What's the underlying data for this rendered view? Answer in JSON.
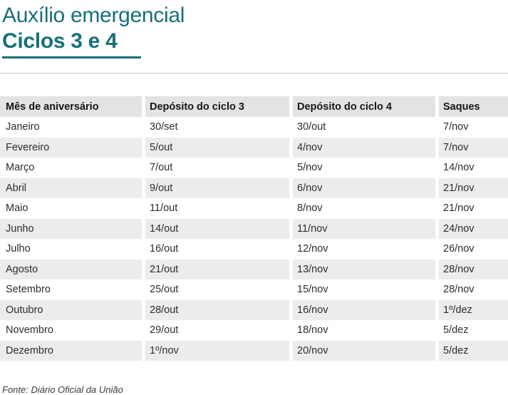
{
  "title": "Auxílio emergencial",
  "subtitle": "Ciclos 3 e 4",
  "colors": {
    "accent": "#16707a",
    "header_bg": "#e3e3e3",
    "row_alt_bg": "#ececec",
    "divider": "#e4e4e4",
    "text": "#2d2d2d"
  },
  "chart_data": {
    "type": "table",
    "title": "Auxílio emergencial — Ciclos 3 e 4",
    "columns": [
      "Mês de aniversário",
      "Depósito do ciclo 3",
      "Depósito do ciclo 4",
      "Saques"
    ],
    "rows": [
      [
        "Janeiro",
        "30/set",
        "30/out",
        "7/nov"
      ],
      [
        "Fevereiro",
        "5/out",
        "4/nov",
        "7/nov"
      ],
      [
        "Março",
        "7/out",
        "5/nov",
        "14/nov"
      ],
      [
        "Abril",
        "9/out",
        "6/nov",
        "21/nov"
      ],
      [
        "Maio",
        "11/out",
        "8/nov",
        "21/nov"
      ],
      [
        "Junho",
        "14/out",
        "11/nov",
        "24/nov"
      ],
      [
        "Julho",
        "16/out",
        "12/nov",
        "26/nov"
      ],
      [
        "Agosto",
        "21/out",
        "13/nov",
        "28/nov"
      ],
      [
        "Setembro",
        "25/out",
        "15/nov",
        "28/nov"
      ],
      [
        "Outubro",
        "28/out",
        "16/nov",
        "1º/dez"
      ],
      [
        "Novembro",
        "29/out",
        "18/nov",
        "5/dez"
      ],
      [
        "Dezembro",
        "1º/nov",
        "20/nov",
        "5/dez"
      ]
    ],
    "source": "Fonte: Diário Oficial da União",
    "layout": {
      "striped": true,
      "legend": "none",
      "grid": "off"
    }
  },
  "footer": {
    "source": "Fonte: Diário Oficial da União"
  }
}
